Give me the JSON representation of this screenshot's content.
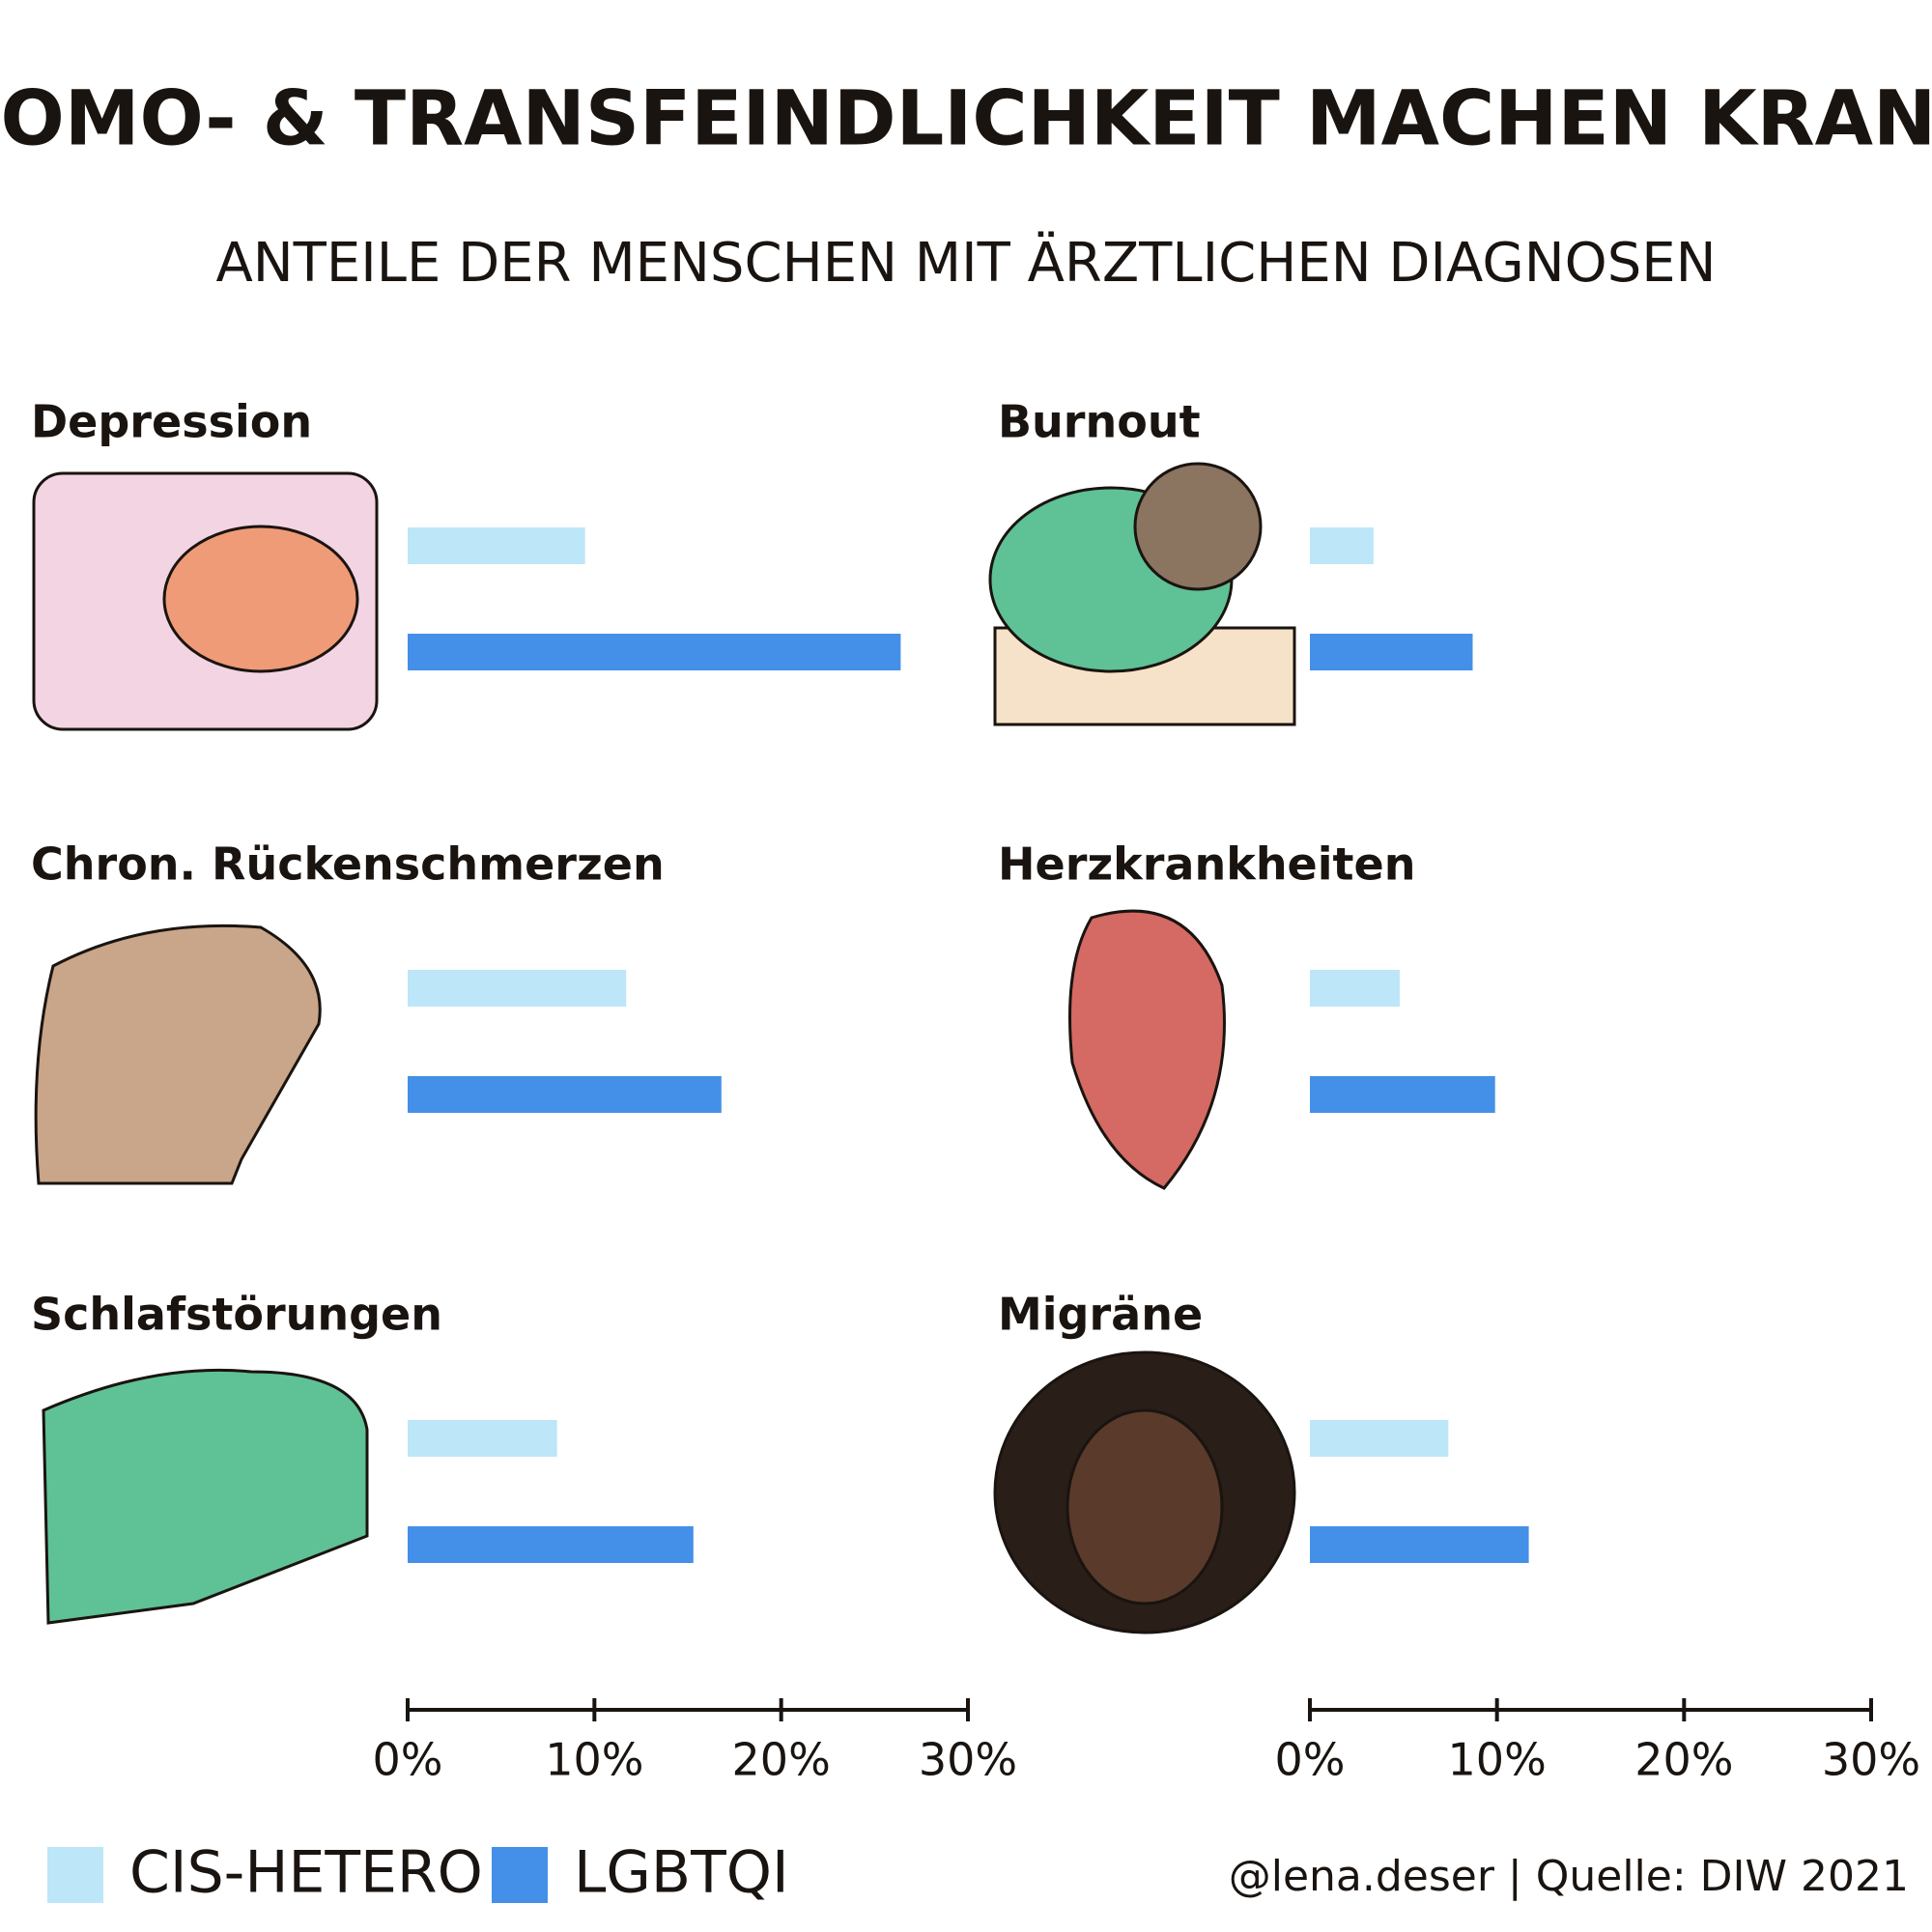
{
  "title": "HOMO- & TRANSFEINDLICHKEIT MACHEN KRANK",
  "subtitle": "ANTEILE DER MENSCHEN MIT ÄRZTLICHEN DIAGNOSEN",
  "legend": [
    {
      "name": "CIS-HETERO",
      "color": "#bde6f8"
    },
    {
      "name": "LGBTQI",
      "color": "#4490e8"
    }
  ],
  "source": "@lena.deser | Quelle: DIW 2021",
  "chart_data": [
    {
      "type": "bar",
      "orientation": "horizontal",
      "title": "Depression",
      "values": [
        9.5,
        26.4
      ],
      "xlim": [
        0,
        30
      ]
    },
    {
      "type": "bar",
      "orientation": "horizontal",
      "title": "Burnout",
      "values": [
        3.4,
        8.7
      ],
      "xlim": [
        0,
        30
      ]
    },
    {
      "type": "bar",
      "orientation": "horizontal",
      "title": "Chron. Rückenschmerzen",
      "values": [
        11.7,
        16.8
      ],
      "xlim": [
        0,
        30
      ]
    },
    {
      "type": "bar",
      "orientation": "horizontal",
      "title": "Herzkrankheiten",
      "values": [
        4.8,
        9.9
      ],
      "xlim": [
        0,
        30
      ]
    },
    {
      "type": "bar",
      "orientation": "horizontal",
      "title": "Schlafstörungen",
      "values": [
        8.0,
        15.3
      ],
      "xlim": [
        0,
        30
      ],
      "xticks": [
        {
          "value": 0,
          "label": "0%"
        },
        {
          "value": 10,
          "label": "10%"
        },
        {
          "value": 20,
          "label": "20%"
        },
        {
          "value": 30,
          "label": "30%"
        }
      ]
    },
    {
      "type": "bar",
      "orientation": "horizontal",
      "title": "Migräne",
      "values": [
        7.4,
        11.7
      ],
      "xlim": [
        0,
        30
      ],
      "xticks": [
        {
          "value": 0,
          "label": "0%"
        },
        {
          "value": 10,
          "label": "10%"
        },
        {
          "value": 20,
          "label": "20%"
        },
        {
          "value": 30,
          "label": "30%"
        }
      ]
    }
  ]
}
